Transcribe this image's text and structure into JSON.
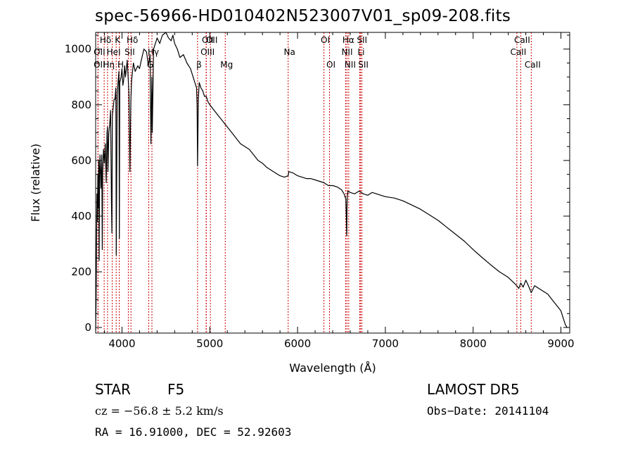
{
  "chart_data": {
    "type": "line",
    "title": "spec-56966-HD010402N523007V01_sp09-208.fits",
    "xlabel": "Wavelength (Å)",
    "ylabel": "Flux (relative)",
    "xlim": [
      3700,
      9100
    ],
    "ylim": [
      -20,
      1060
    ],
    "xticks": [
      4000,
      5000,
      6000,
      7000,
      8000,
      9000
    ],
    "yticks": [
      0,
      200,
      400,
      600,
      800,
      1000
    ],
    "grid": false,
    "series": [
      {
        "x": [
          3700,
          3705,
          3710,
          3715,
          3720,
          3725,
          3730,
          3735,
          3740,
          3745,
          3750,
          3760,
          3770,
          3775,
          3780,
          3790,
          3800,
          3810,
          3820,
          3830,
          3835,
          3840,
          3850,
          3860,
          3870,
          3880,
          3885,
          3890,
          3900,
          3910,
          3920,
          3930,
          3935,
          3945,
          3955,
          3965,
          3970,
          3975,
          3990,
          4000,
          4010,
          4020,
          4030,
          4040,
          4060,
          4080,
          4090,
          4101,
          4110,
          4130,
          4150,
          4180,
          4200,
          4220,
          4250,
          4280,
          4300,
          4320,
          4330,
          4340,
          4345,
          4360,
          4380,
          4400,
          4430,
          4460,
          4500,
          4530,
          4560,
          4580,
          4600,
          4630,
          4660,
          4700,
          4740,
          4780,
          4820,
          4850,
          4855,
          4861,
          4870,
          4880,
          4900,
          4920,
          4940,
          4960,
          4980,
          5000,
          5050,
          5100,
          5150,
          5200,
          5250,
          5300,
          5350,
          5400,
          5450,
          5500,
          5550,
          5600,
          5650,
          5700,
          5750,
          5800,
          5850,
          5893,
          5900,
          5950,
          6000,
          6050,
          6100,
          6150,
          6200,
          6250,
          6300,
          6350,
          6400,
          6450,
          6500,
          6530,
          6550,
          6560,
          6563,
          6566,
          6575,
          6600,
          6650,
          6700,
          6750,
          6800,
          6850,
          6900,
          6950,
          7000,
          7100,
          7200,
          7300,
          7400,
          7500,
          7600,
          7700,
          7800,
          7900,
          8000,
          8100,
          8200,
          8300,
          8400,
          8450,
          8498,
          8520,
          8542,
          8570,
          8600,
          8630,
          8662,
          8700,
          8750,
          8800,
          8850,
          8900,
          8950,
          9000,
          9020,
          9040,
          9050,
          9060,
          9070
        ],
        "y": [
          -10,
          90,
          280,
          480,
          380,
          550,
          430,
          600,
          240,
          560,
          620,
          500,
          620,
          280,
          560,
          640,
          590,
          660,
          520,
          700,
          720,
          560,
          700,
          730,
          780,
          440,
          340,
          760,
          790,
          820,
          820,
          860,
          260,
          830,
          880,
          920,
          320,
          880,
          900,
          930,
          870,
          890,
          940,
          900,
          960,
          840,
          560,
          820,
          890,
          950,
          920,
          940,
          930,
          960,
          1000,
          990,
          940,
          980,
          660,
          900,
          700,
          1000,
          1020,
          1040,
          1020,
          1050,
          1060,
          1040,
          1030,
          1050,
          1020,
          1000,
          970,
          980,
          950,
          930,
          890,
          860,
          800,
          580,
          820,
          880,
          860,
          850,
          830,
          830,
          810,
          800,
          780,
          760,
          740,
          720,
          700,
          680,
          660,
          650,
          640,
          620,
          600,
          590,
          575,
          565,
          555,
          545,
          540,
          545,
          560,
          555,
          545,
          540,
          535,
          535,
          530,
          525,
          520,
          510,
          510,
          505,
          495,
          480,
          460,
          330,
          420,
          470,
          490,
          485,
          480,
          490,
          480,
          475,
          485,
          480,
          475,
          470,
          465,
          455,
          440,
          425,
          405,
          385,
          360,
          335,
          310,
          280,
          252,
          225,
          200,
          180,
          165,
          150,
          140,
          160,
          145,
          170,
          150,
          125,
          150,
          140,
          130,
          120,
          100,
          80,
          60,
          40,
          20,
          10,
          5,
          0
        ]
      }
    ],
    "line_ids": [
      {
        "label": "Hδ",
        "wavelength": 3797
      },
      {
        "label": "K",
        "wavelength": 3934
      },
      {
        "label": "Hδ",
        "wavelength": 4102
      },
      {
        "label": "OII",
        "wavelength": 4960
      },
      {
        "label": "OII",
        "wavelength": 5007
      },
      {
        "label": "OI",
        "wavelength": 6300
      },
      {
        "label": "Hα",
        "wavelength": 6563
      },
      {
        "label": "SII",
        "wavelength": 6718
      },
      {
        "label": "CaII",
        "wavelength": 8542
      },
      {
        "label": "OII",
        "wavelength": 3727
      },
      {
        "label": "HeI",
        "wavelength": 3889
      },
      {
        "label": "SII",
        "wavelength": 4072
      },
      {
        "label": "Hγ",
        "wavelength": 4341
      },
      {
        "label": "OIII",
        "wavelength": 4959
      },
      {
        "label": "Na",
        "wavelength": 5893
      },
      {
        "label": "NII",
        "wavelength": 6548
      },
      {
        "label": "Li",
        "wavelength": 6708
      },
      {
        "label": "CaII",
        "wavelength": 8498
      },
      {
        "label": "OII",
        "wavelength": 3727
      },
      {
        "label": "Hη",
        "wavelength": 3835
      },
      {
        "label": "H",
        "wavelength": 3969
      },
      {
        "label": "G",
        "wavelength": 4305
      },
      {
        "label": "β",
        "wavelength": 4861
      },
      {
        "label": "Mg",
        "wavelength": 5176
      },
      {
        "label": "OI",
        "wavelength": 6364
      },
      {
        "label": "NII",
        "wavelength": 6583
      },
      {
        "label": "SII",
        "wavelength": 6733
      },
      {
        "label": "CaII",
        "wavelength": 8662
      }
    ],
    "line_color": "#cc0000"
  },
  "footer": {
    "class_label": "STAR",
    "subclass": "F5",
    "survey": "LAMOST DR5",
    "redshift": "cz = −56.8 ± 5.2 km/s",
    "obs_date": "Obs−Date: 20141104",
    "coords": "RA =  16.91000, DEC =  52.92603"
  }
}
